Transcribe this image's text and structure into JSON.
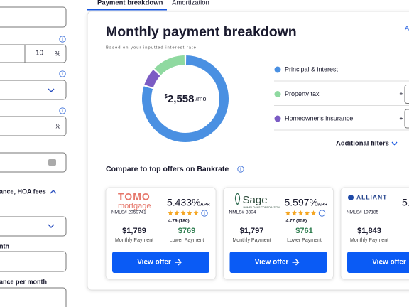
{
  "tabs": [
    "Payment breakdown",
    "Amortization"
  ],
  "form": {
    "rate_value": "10",
    "percent_1": "%",
    "percent_2": "%",
    "section_label": "ance, HOA fees",
    "label_1": "nth",
    "label_2": "ance per month"
  },
  "breakdown": {
    "title": "Monthly payment breakdown",
    "subtitle": "Based on your inputted interest rate",
    "corner_link": "A",
    "currency": "$",
    "amount": "2,558",
    "unit": "/mo",
    "legend": [
      {
        "label": "Principal & interest",
        "color": "#4a90e2",
        "share": 80
      },
      {
        "label": "Homeowner's insurance",
        "color": "#7b5cc4",
        "share": 7
      },
      {
        "label": "Property tax",
        "color": "#8fd9a0",
        "share": 13
      }
    ],
    "plus": "+",
    "filters": "Additional filters"
  },
  "offers": {
    "heading": "Compare to top offers on Bankrate",
    "items": [
      {
        "logo": [
          "TOMO",
          "mortgage"
        ],
        "nmls": "NMLS# 2059741",
        "rate": "5.433%",
        "apr": "APR",
        "rating": "4.79 (180)",
        "monthly": "$1,789",
        "monthly_label": "Monthly Payment",
        "lower": "$769",
        "lower_label": "Lower Payment",
        "button": "View offer"
      },
      {
        "logo": [
          "Sage",
          "HOME LOANS CORPORATION"
        ],
        "nmls": "NMLS# 3304",
        "rate": "5.597%",
        "apr": "APR",
        "rating": "4.77 (658)",
        "monthly": "$1,797",
        "monthly_label": "Monthly Payment",
        "lower": "$761",
        "lower_label": "Lower Payment",
        "button": "View offer"
      },
      {
        "logo": [
          "ALLIANT"
        ],
        "nmls": "NMLS# 197185",
        "rate": "5.",
        "monthly": "$1,843",
        "monthly_label": "Monthly Payment",
        "button": "View offer"
      }
    ]
  }
}
